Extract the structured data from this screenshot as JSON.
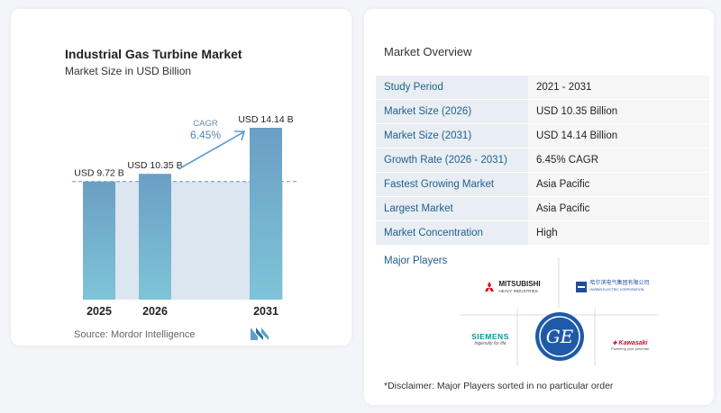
{
  "left_panel": {
    "title": "Industrial Gas Turbine Market",
    "subtitle": "Market Size in USD Billion",
    "source": "Source: Mordor Intelligence"
  },
  "chart_data": {
    "type": "bar",
    "title": "Industrial Gas Turbine Market",
    "subtitle": "Market Size in USD Billion",
    "categories": [
      "2025",
      "2026",
      "2031"
    ],
    "values": [
      9.72,
      10.35,
      14.14
    ],
    "value_labels": [
      "USD 9.72 B",
      "USD 10.35 B",
      "USD 14.14 B"
    ],
    "annotation": {
      "label": "CAGR",
      "value": "6.45%"
    },
    "ylim": [
      0,
      14.14
    ],
    "grid": false,
    "colors": {
      "bar": "#6a9fc4",
      "bar_bottom": "#7fc4d8",
      "band": "#dbe6f1",
      "arrow": "#5b9ccf"
    }
  },
  "overview": {
    "title": "Market Overview",
    "rows": [
      {
        "key": "Study Period",
        "value": "2021 - 2031"
      },
      {
        "key": "Market Size (2026)",
        "value": "USD 10.35 Billion"
      },
      {
        "key": "Market Size (2031)",
        "value": "USD 14.14 Billion"
      },
      {
        "key": "Growth Rate (2026 - 2031)",
        "value": "6.45% CAGR"
      },
      {
        "key": "Fastest Growing Market",
        "value": "Asia Pacific"
      },
      {
        "key": "Largest Market",
        "value": "Asia Pacific"
      },
      {
        "key": "Market Concentration",
        "value": "High"
      }
    ],
    "major_players_title": "Major Players",
    "players": [
      {
        "name": "MITSUBISHI",
        "sub": "HEAVY INDUSTRIES"
      },
      {
        "name": "哈尔滨电气集团有限公司",
        "sub": "HARBIN ELECTRIC CORPORATION"
      },
      {
        "name": "SIEMENS",
        "sub": "Ingenuity for life"
      },
      {
        "name": "GE"
      },
      {
        "name": "Kawasaki",
        "sub": "Powering your potential"
      }
    ],
    "disclaimer": "*Disclaimer: Major Players sorted in no particular order"
  }
}
